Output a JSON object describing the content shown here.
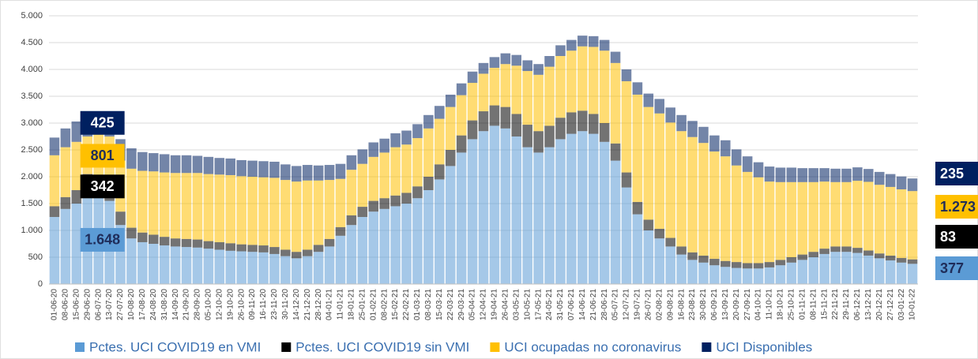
{
  "chart_data": {
    "type": "stacked-bar",
    "categories": [
      "01-06-20",
      "08-06-20",
      "15-06-20",
      "29-06-20",
      "06-07-20",
      "13-07-20",
      "27-07-20",
      "10-08-20",
      "17-08-20",
      "24-08-20",
      "31-08-20",
      "14-09-20",
      "21-09-20",
      "28-09-20",
      "05-10-20",
      "12-10-20",
      "19-10-20",
      "26-10-20",
      "09-11-20",
      "16-11-20",
      "23-11-20",
      "30-11-20",
      "14-12-20",
      "21-12-20",
      "28-12-20",
      "04-01-21",
      "11-01-21",
      "18-01-21",
      "25-01-21",
      "01-02-21",
      "08-02-21",
      "15-02-21",
      "22-02-21",
      "01-03-21",
      "08-03-21",
      "15-03-21",
      "22-03-21",
      "29-03-21",
      "05-04-21",
      "12-04-21",
      "19-04-21",
      "26-04-21",
      "03-05-21",
      "10-05-21",
      "17-05-21",
      "24-05-21",
      "31-05-21",
      "07-06-21",
      "14-06-21",
      "21-06-21",
      "28-06-21",
      "05-07-21",
      "12-07-21",
      "19-07-21",
      "26-07-21",
      "02-08-21",
      "09-08-21",
      "16-08-21",
      "23-08-21",
      "30-08-21",
      "06-09-21",
      "13-09-21",
      "20-09-21",
      "27-09-21",
      "04-10-21",
      "11-10-21",
      "18-10-21",
      "25-10-21",
      "01-11-21",
      "08-11-21",
      "15-11-21",
      "22-11-21",
      "29-11-21",
      "06-12-21",
      "13-12-21",
      "20-12-21",
      "27-12-21",
      "03-01-22",
      "10-01-22"
    ],
    "series": [
      {
        "name": "Pctes. UCI COVID19 en VMI",
        "color": "#5b9bd5",
        "values": [
          1250,
          1400,
          1500,
          1750,
          1648,
          1550,
          1100,
          850,
          780,
          750,
          720,
          700,
          690,
          680,
          660,
          640,
          620,
          610,
          600,
          590,
          560,
          520,
          480,
          520,
          600,
          700,
          900,
          1100,
          1250,
          1350,
          1400,
          1450,
          1500,
          1600,
          1750,
          1950,
          2200,
          2450,
          2700,
          2850,
          2950,
          2900,
          2750,
          2550,
          2450,
          2550,
          2700,
          2800,
          2850,
          2800,
          2650,
          2300,
          1800,
          1300,
          1000,
          850,
          700,
          550,
          450,
          400,
          350,
          320,
          300,
          290,
          290,
          310,
          350,
          400,
          450,
          500,
          560,
          600,
          600,
          580,
          530,
          480,
          440,
          400,
          377
        ],
        "value_labels": [
          null,
          null,
          null,
          null,
          "1.648",
          null,
          null,
          null,
          null,
          null,
          null,
          null,
          null,
          null,
          null,
          null,
          null,
          null,
          null,
          null,
          null,
          null,
          null,
          null,
          null,
          null,
          null,
          null,
          null,
          null,
          null,
          null,
          null,
          null,
          null,
          null,
          null,
          null,
          null,
          null,
          null,
          null,
          null,
          null,
          null,
          null,
          null,
          null,
          null,
          null,
          null,
          null,
          null,
          null,
          null,
          null,
          null,
          null,
          null,
          null,
          null,
          null,
          null,
          null,
          null,
          null,
          null,
          null,
          null,
          null,
          null,
          null,
          null,
          null,
          null,
          null,
          null,
          null,
          "377"
        ]
      },
      {
        "name": "Pctes. UCI COVID19 sin VMI",
        "color": "#000000",
        "values": [
          200,
          220,
          250,
          300,
          342,
          330,
          250,
          200,
          180,
          170,
          160,
          150,
          150,
          150,
          140,
          140,
          140,
          130,
          130,
          130,
          130,
          120,
          120,
          120,
          130,
          140,
          160,
          180,
          190,
          200,
          200,
          200,
          200,
          220,
          250,
          280,
          300,
          320,
          350,
          370,
          380,
          400,
          420,
          420,
          400,
          400,
          400,
          400,
          380,
          370,
          350,
          320,
          280,
          230,
          200,
          180,
          160,
          150,
          140,
          130,
          120,
          110,
          110,
          100,
          100,
          100,
          100,
          100,
          100,
          100,
          100,
          100,
          100,
          95,
          95,
          90,
          90,
          85,
          83
        ],
        "value_labels": [
          null,
          null,
          null,
          null,
          "342",
          null,
          null,
          null,
          null,
          null,
          null,
          null,
          null,
          null,
          null,
          null,
          null,
          null,
          null,
          null,
          null,
          null,
          null,
          null,
          null,
          null,
          null,
          null,
          null,
          null,
          null,
          null,
          null,
          null,
          null,
          null,
          null,
          null,
          null,
          null,
          null,
          null,
          null,
          null,
          null,
          null,
          null,
          null,
          null,
          null,
          null,
          null,
          null,
          null,
          null,
          null,
          null,
          null,
          null,
          null,
          null,
          null,
          null,
          null,
          null,
          null,
          null,
          null,
          null,
          null,
          null,
          null,
          null,
          null,
          null,
          null,
          null,
          null,
          "83"
        ]
      },
      {
        "name": "UCI ocupadas no coronavirus",
        "color": "#ffc000",
        "values": [
          950,
          930,
          900,
          700,
          801,
          870,
          950,
          1100,
          1150,
          1180,
          1200,
          1220,
          1230,
          1240,
          1250,
          1260,
          1270,
          1270,
          1270,
          1270,
          1290,
          1300,
          1310,
          1290,
          1200,
          1100,
          900,
          850,
          800,
          820,
          850,
          900,
          900,
          900,
          900,
          850,
          800,
          750,
          700,
          700,
          700,
          800,
          900,
          1000,
          1050,
          1100,
          1150,
          1150,
          1200,
          1250,
          1350,
          1500,
          1700,
          2000,
          2100,
          2150,
          2150,
          2150,
          2150,
          2100,
          2000,
          1950,
          1800,
          1700,
          1600,
          1500,
          1450,
          1400,
          1350,
          1300,
          1250,
          1200,
          1200,
          1250,
          1280,
          1280,
          1280,
          1280,
          1273
        ],
        "value_labels": [
          null,
          null,
          null,
          null,
          "801",
          null,
          null,
          null,
          null,
          null,
          null,
          null,
          null,
          null,
          null,
          null,
          null,
          null,
          null,
          null,
          null,
          null,
          null,
          null,
          null,
          null,
          null,
          null,
          null,
          null,
          null,
          null,
          null,
          null,
          null,
          null,
          null,
          null,
          null,
          null,
          null,
          null,
          null,
          null,
          null,
          null,
          null,
          null,
          null,
          null,
          null,
          null,
          null,
          null,
          null,
          null,
          null,
          null,
          null,
          null,
          null,
          null,
          null,
          null,
          null,
          null,
          null,
          null,
          null,
          null,
          null,
          null,
          null,
          null,
          null,
          null,
          null,
          null,
          "1.273"
        ]
      },
      {
        "name": "UCI Disponibles",
        "color": "#002060",
        "values": [
          330,
          350,
          380,
          400,
          425,
          420,
          400,
          380,
          350,
          340,
          340,
          330,
          330,
          320,
          320,
          310,
          310,
          300,
          300,
          300,
          300,
          290,
          290,
          290,
          280,
          280,
          280,
          270,
          270,
          270,
          260,
          260,
          260,
          260,
          250,
          240,
          230,
          220,
          210,
          200,
          200,
          200,
          200,
          200,
          200,
          200,
          200,
          200,
          200,
          200,
          200,
          210,
          220,
          230,
          250,
          270,
          280,
          300,
          300,
          300,
          300,
          300,
          300,
          290,
          280,
          280,
          270,
          270,
          260,
          260,
          250,
          250,
          250,
          250,
          240,
          240,
          240,
          240,
          235
        ],
        "value_labels": [
          null,
          null,
          null,
          null,
          "425",
          null,
          null,
          null,
          null,
          null,
          null,
          null,
          null,
          null,
          null,
          null,
          null,
          null,
          null,
          null,
          null,
          null,
          null,
          null,
          null,
          null,
          null,
          null,
          null,
          null,
          null,
          null,
          null,
          null,
          null,
          null,
          null,
          null,
          null,
          null,
          null,
          null,
          null,
          null,
          null,
          null,
          null,
          null,
          null,
          null,
          null,
          null,
          null,
          null,
          null,
          null,
          null,
          null,
          null,
          null,
          null,
          null,
          null,
          null,
          null,
          null,
          null,
          null,
          null,
          null,
          null,
          null,
          null,
          null,
          null,
          null,
          null,
          null,
          "235"
        ]
      }
    ],
    "ylim": [
      0,
      5000
    ],
    "yticks": [
      0,
      500,
      {
        "value": 1000,
        "label": "1.000"
      },
      {
        "value": 1500,
        "label": "1.500"
      },
      {
        "value": 2000,
        "label": "2.000"
      },
      {
        "value": 2500,
        "label": "2.500"
      },
      {
        "value": 3000,
        "label": "3.000"
      },
      {
        "value": 3500,
        "label": "3.500"
      },
      {
        "value": 4000,
        "label": "4.000"
      },
      {
        "value": 4500,
        "label": "4.500"
      },
      {
        "value": 5000,
        "label": "5.000"
      }
    ],
    "grid": true,
    "legend": "bottom"
  }
}
